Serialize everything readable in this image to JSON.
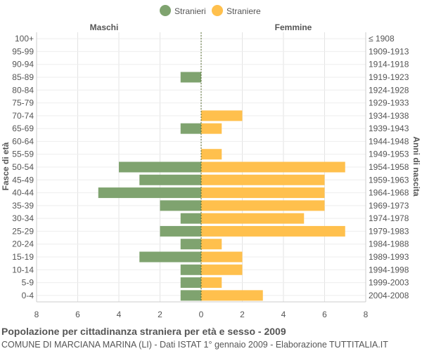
{
  "chart_data": {
    "type": "bar",
    "orientation": "horizontal",
    "title": "Popolazione per cittadinanza straniera per età e sesso - 2009",
    "subtitle": "COMUNE DI MARCIANA MARINA (LI) - Dati ISTAT 1° gennaio 2009 - Elaborazione TUTTITALIA.IT",
    "ylabel_left": "Fasce di età",
    "ylabel_right": "Anni di nascita",
    "header_left": "Maschi",
    "header_right": "Femmine",
    "legend_position": "top-center",
    "grid": true,
    "xlim": [
      -8,
      8
    ],
    "x_ticks": [
      "8",
      "6",
      "4",
      "2",
      "0",
      "2",
      "4",
      "6",
      "8"
    ],
    "categories": [
      "100+",
      "95-99",
      "90-94",
      "85-89",
      "80-84",
      "75-79",
      "70-74",
      "65-69",
      "60-64",
      "55-59",
      "50-54",
      "45-49",
      "40-44",
      "35-39",
      "30-34",
      "25-29",
      "20-24",
      "15-19",
      "10-14",
      "5-9",
      "0-4"
    ],
    "birth_years": [
      "≤ 1908",
      "1909-1913",
      "1914-1918",
      "1919-1923",
      "1924-1928",
      "1929-1933",
      "1934-1938",
      "1939-1943",
      "1944-1948",
      "1949-1953",
      "1954-1958",
      "1959-1963",
      "1964-1968",
      "1969-1973",
      "1974-1978",
      "1979-1983",
      "1984-1988",
      "1989-1993",
      "1994-1998",
      "1999-2003",
      "2004-2008"
    ],
    "series": [
      {
        "name": "Stranieri",
        "color": "#7fa36f",
        "values": [
          0,
          0,
          0,
          1,
          0,
          0,
          0,
          1,
          0,
          0,
          4,
          3,
          5,
          2,
          1,
          2,
          1,
          3,
          1,
          1,
          1
        ]
      },
      {
        "name": "Straniere",
        "color": "#ffc04d",
        "values": [
          0,
          0,
          0,
          0,
          0,
          0,
          2,
          1,
          0,
          1,
          7,
          6,
          6,
          6,
          5,
          7,
          1,
          2,
          2,
          1,
          3
        ]
      }
    ]
  }
}
